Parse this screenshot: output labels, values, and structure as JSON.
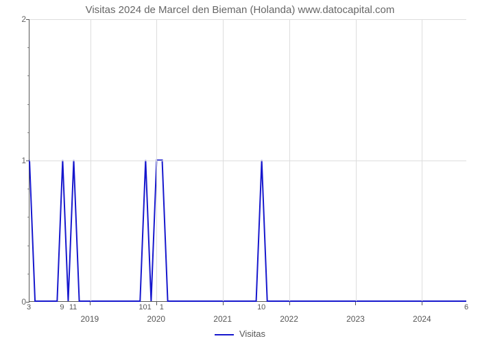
{
  "chart": {
    "type": "line",
    "title": "Visitas 2024 de Marcel den Bieman (Holanda) www.datocapital.com",
    "title_color": "#666666",
    "title_fontsize": 15,
    "background_color": "#ffffff",
    "grid_color": "#dddddd",
    "axis_color": "#555555",
    "line_color": "#1617cd",
    "line_width": 2,
    "y_axis": {
      "min": 0,
      "max": 2,
      "major_ticks": [
        0,
        1,
        2
      ],
      "minor_tick_count_between": 4
    },
    "x_axis": {
      "n_points": 80,
      "year_labels": [
        {
          "label": "2019",
          "pos": 11
        },
        {
          "label": "2020",
          "pos": 23
        },
        {
          "label": "2021",
          "pos": 35
        },
        {
          "label": "2022",
          "pos": 47
        },
        {
          "label": "2023",
          "pos": 59
        },
        {
          "label": "2024",
          "pos": 71
        }
      ],
      "data_labels": [
        {
          "label": "3",
          "pos": 0
        },
        {
          "label": "9",
          "pos": 6
        },
        {
          "label": "11",
          "pos": 8
        },
        {
          "label": "101",
          "pos": 21
        },
        {
          "label": "1",
          "pos": 24
        },
        {
          "label": "10",
          "pos": 42
        },
        {
          "label": "6",
          "pos": 79
        }
      ]
    },
    "series": {
      "name": "Visitas",
      "values": [
        1,
        0,
        0,
        0,
        0,
        0,
        1,
        0,
        1,
        0,
        0,
        0,
        0,
        0,
        0,
        0,
        0,
        0,
        0,
        0,
        0,
        1,
        0,
        1,
        1,
        0,
        0,
        0,
        0,
        0,
        0,
        0,
        0,
        0,
        0,
        0,
        0,
        0,
        0,
        0,
        0,
        0,
        1,
        0,
        0,
        0,
        0,
        0,
        0,
        0,
        0,
        0,
        0,
        0,
        0,
        0,
        0,
        0,
        0,
        0,
        0,
        0,
        0,
        0,
        0,
        0,
        0,
        0,
        0,
        0,
        0,
        0,
        0,
        0,
        0,
        0,
        0,
        0,
        0,
        0
      ]
    },
    "legend": {
      "label": "Visitas"
    }
  }
}
